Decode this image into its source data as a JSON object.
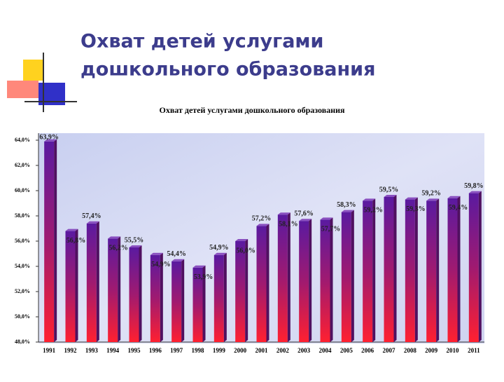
{
  "slide_title": [
    "Охват детей услугами",
    "дошкольного образования"
  ],
  "chart_data": {
    "type": "bar",
    "title": "Охват детей услугами дошкольного образования",
    "categories": [
      "1991",
      "1992",
      "1993",
      "1994",
      "1995",
      "1996",
      "1997",
      "1998",
      "1999",
      "2000",
      "2001",
      "2002",
      "2003",
      "2004",
      "2005",
      "2006",
      "2007",
      "2008",
      "2009",
      "2010",
      "2011"
    ],
    "values": [
      63.9,
      56.8,
      57.4,
      56.2,
      55.5,
      54.9,
      54.4,
      53.9,
      54.9,
      56.0,
      57.2,
      58.1,
      57.6,
      57.7,
      58.3,
      59.2,
      59.5,
      59.3,
      59.2,
      59.4,
      59.8
    ],
    "value_labels": [
      "63,9%",
      "56,8%",
      "57,4%",
      "56,2%",
      "55,5%",
      "54,9%",
      "54,4%",
      "53,9%",
      "54,9%",
      "56,0%",
      "57,2%",
      "58,1%",
      "57,6%",
      "57,7%",
      "58,3%",
      "59,2%",
      "59,5%",
      "59,3%",
      "59,2%",
      "59,4%",
      "59,8%"
    ],
    "ylim": [
      48,
      64
    ],
    "yticks": [
      {
        "value": 48,
        "label": "48,0%"
      },
      {
        "value": 50,
        "label": "50,0%"
      },
      {
        "value": 52,
        "label": "52,0%"
      },
      {
        "value": 54,
        "label": "54,0%"
      },
      {
        "value": 56,
        "label": "56,0%"
      },
      {
        "value": 58,
        "label": "58,0%"
      },
      {
        "value": 60,
        "label": "60,0%"
      },
      {
        "value": 62,
        "label": "62,0%"
      },
      {
        "value": 64,
        "label": "64,0%"
      }
    ]
  }
}
